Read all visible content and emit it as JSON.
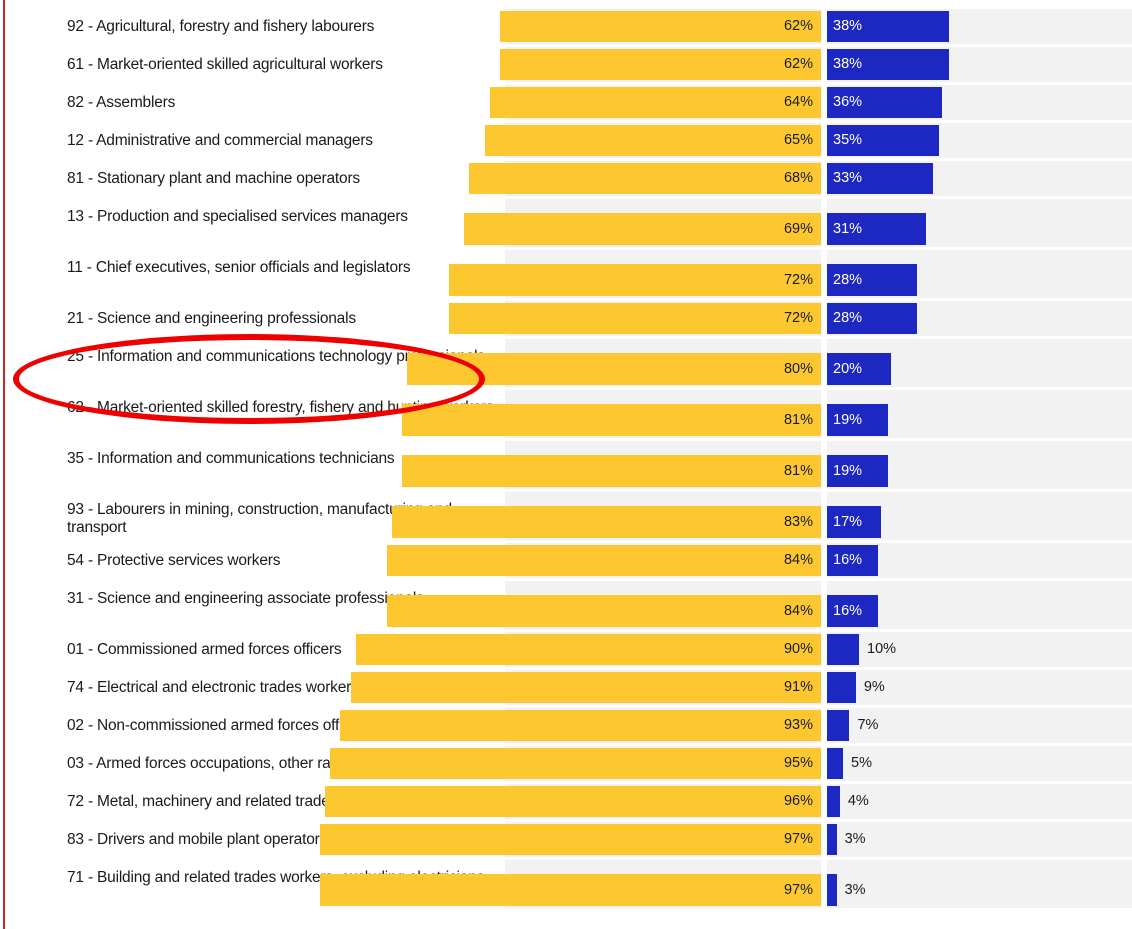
{
  "colors": {
    "left_series": "#fdc82f",
    "right_series": "#1d27c2",
    "track": "#f2f2f2",
    "highlight": "#ee0000"
  },
  "chart_data": {
    "type": "bar",
    "orientation": "horizontal-diverging",
    "categories": [
      "92 - Agricultural, forestry and fishery labourers",
      "61 - Market-oriented skilled agricultural workers",
      "82 - Assemblers",
      "12 - Administrative and commercial managers",
      "81 - Stationary plant and machine operators",
      "13 - Production and specialised services managers",
      "11 - Chief executives, senior officials and legislators",
      "21 - Science and engineering professionals",
      "25 - Information and communications technology professionals",
      "62 - Market-oriented skilled forestry, fishery and hunting workers",
      "35 - Information and communications technicians",
      "93 - Labourers in mining, construction, manufacturing and transport",
      "54 - Protective services workers",
      "31 - Science and engineering associate professionals",
      "01 - Commissioned armed forces officers",
      "74 - Electrical and electronic trades workers",
      "02 - Non-commissioned armed forces officers",
      "03 - Armed forces occupations, other ranks",
      "72 - Metal, machinery and related trades workers",
      "83 - Drivers and mobile plant operators",
      "71 - Building and related trades workers, excluding electricians"
    ],
    "series": [
      {
        "values": [
          62,
          62,
          64,
          65,
          68,
          69,
          72,
          72,
          80,
          81,
          81,
          83,
          84,
          84,
          90,
          91,
          93,
          95,
          96,
          97,
          97
        ]
      },
      {
        "values": [
          38,
          38,
          36,
          35,
          33,
          31,
          28,
          28,
          20,
          19,
          19,
          17,
          16,
          16,
          10,
          9,
          7,
          5,
          4,
          3,
          3
        ]
      }
    ],
    "value_labels": {
      "left": [
        "62%",
        "62%",
        "64%",
        "65%",
        "68%",
        "69%",
        "72%",
        "72%",
        "80%",
        "81%",
        "81%",
        "83%",
        "84%",
        "84%",
        "90%",
        "91%",
        "93%",
        "95%",
        "96%",
        "97%",
        "97%"
      ],
      "right": [
        "38%",
        "38%",
        "36%",
        "35%",
        "33%",
        "31%",
        "28%",
        "28%",
        "20%",
        "19%",
        "19%",
        "17%",
        "16%",
        "16%",
        "10%",
        "9%",
        "7%",
        "5%",
        "4%",
        "3%",
        "3%"
      ]
    },
    "annotation": "red ellipse around 25 - Information and communications technology professionals"
  }
}
